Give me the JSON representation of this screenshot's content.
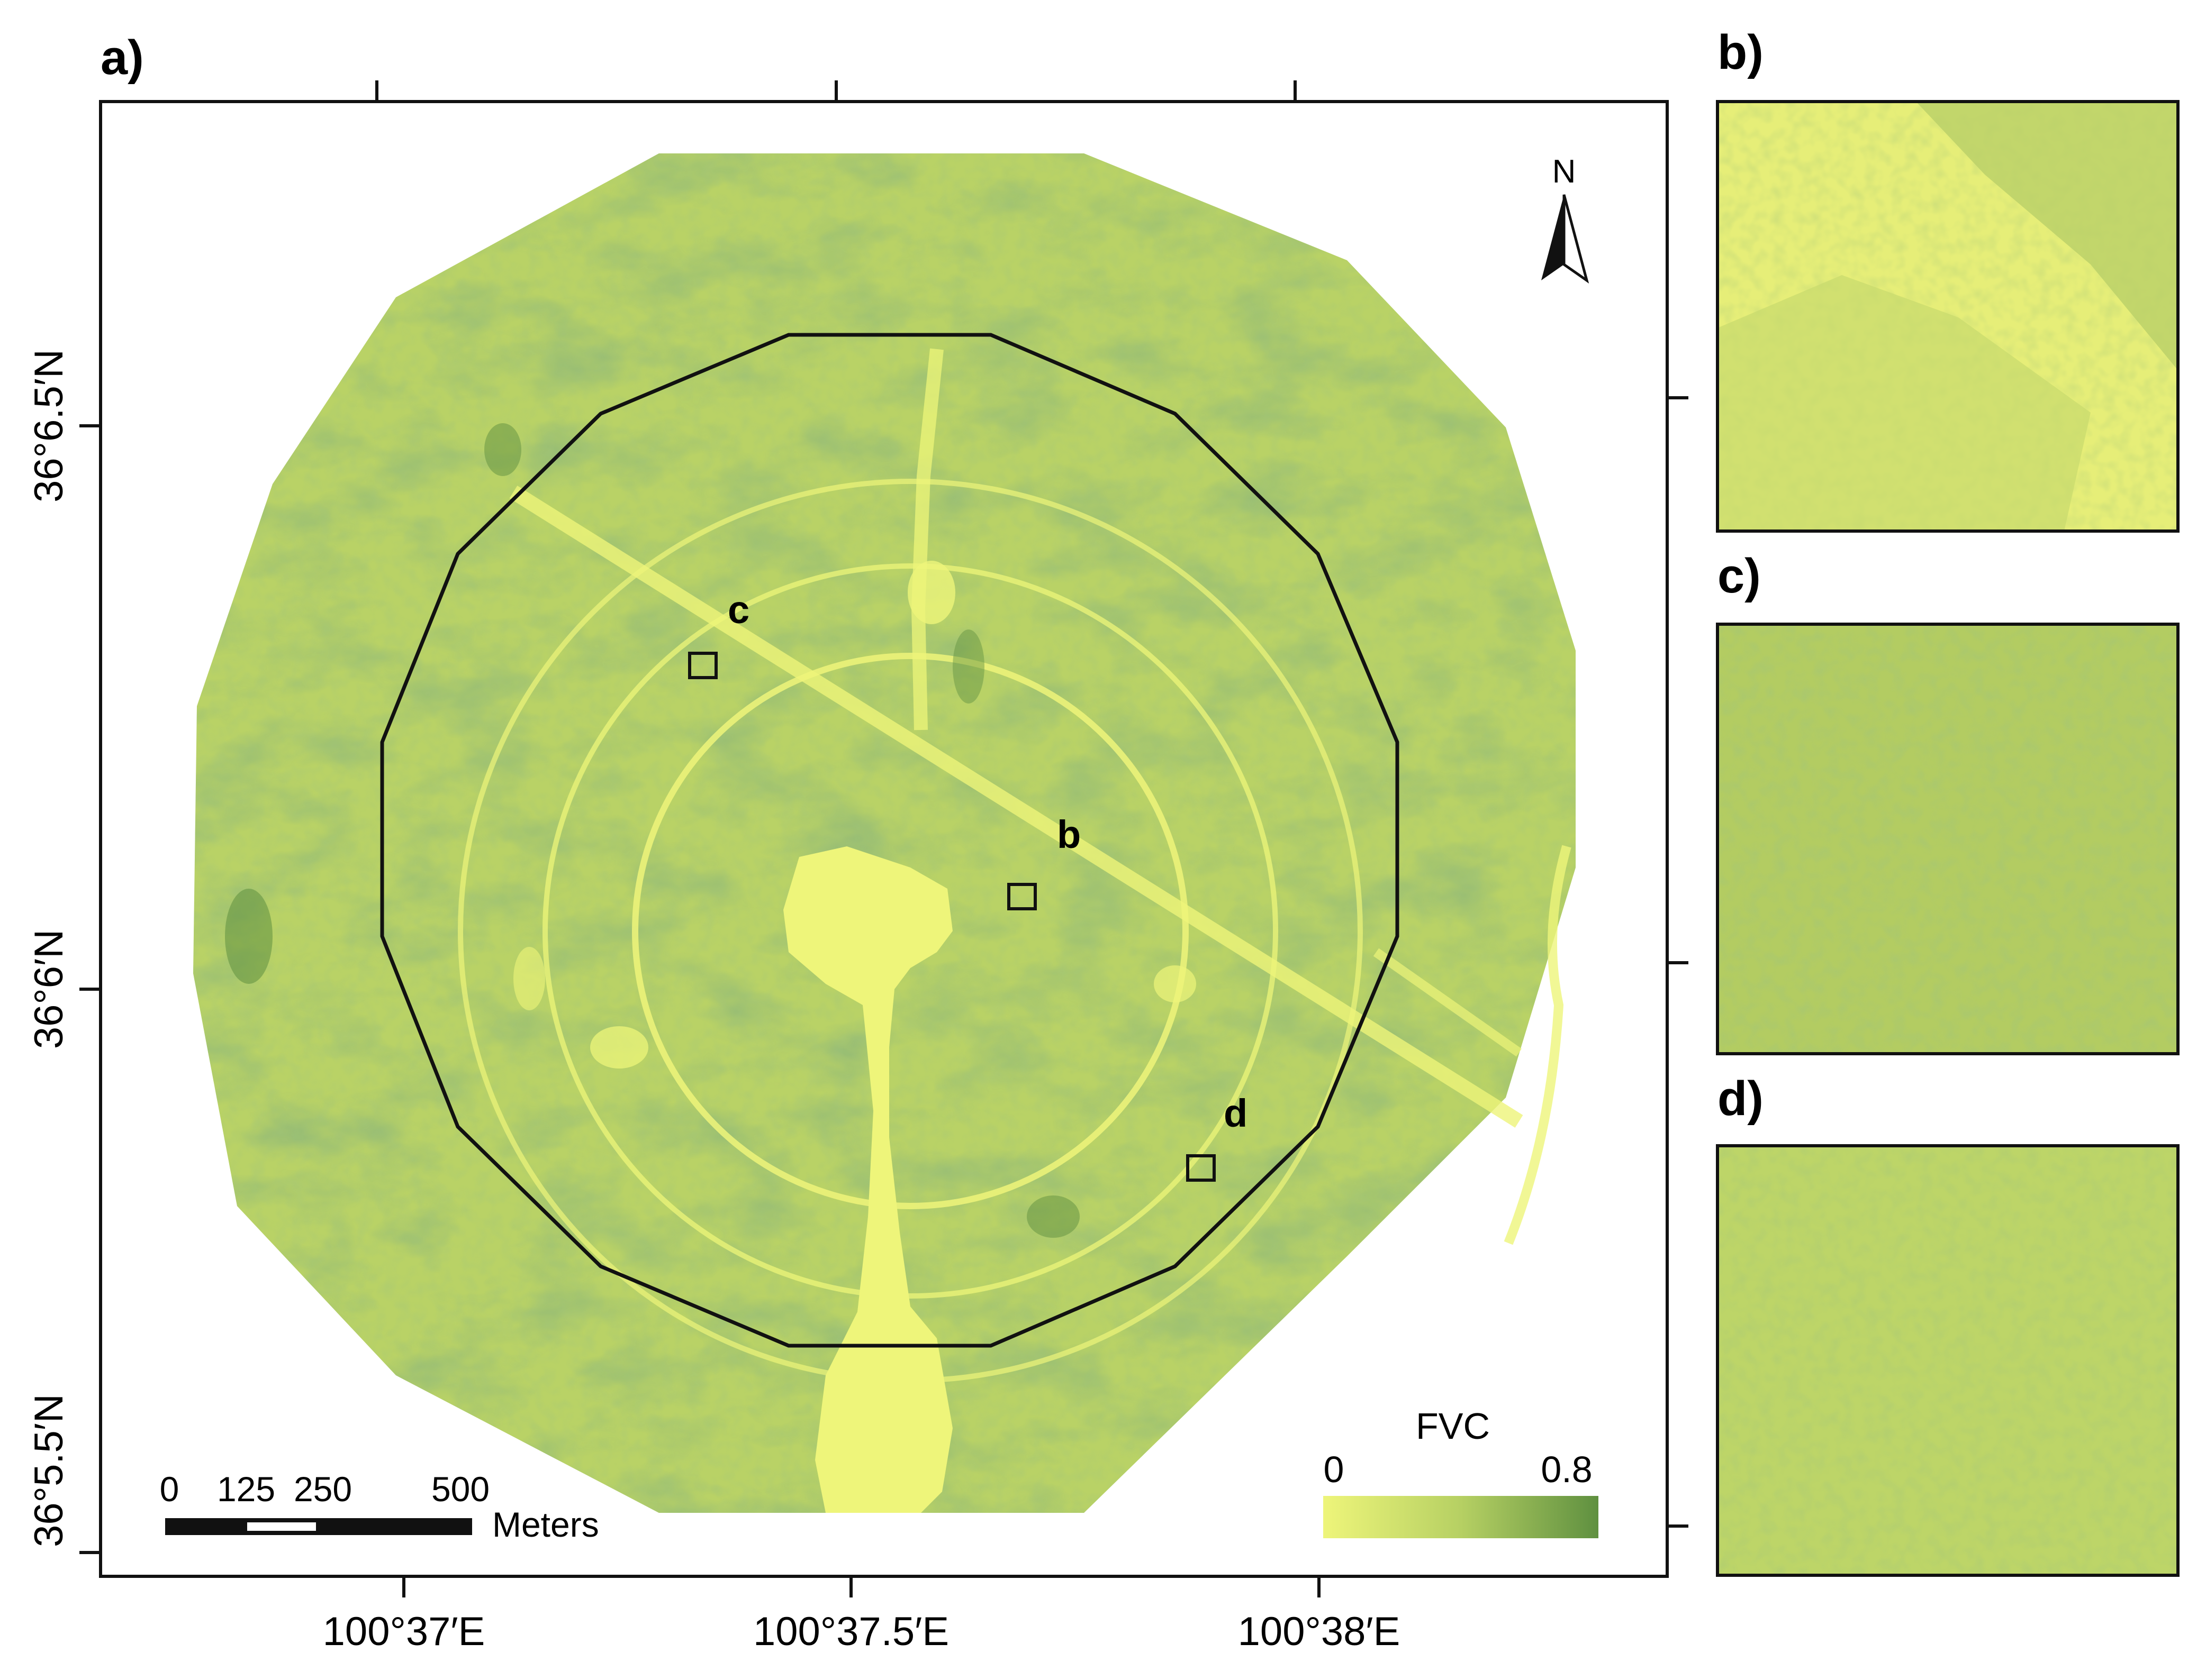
{
  "panels": {
    "a": {
      "label": "a)"
    },
    "b": {
      "label": "b)"
    },
    "c": {
      "label": "c)"
    },
    "d": {
      "label": "d)"
    }
  },
  "map": {
    "lat_ticks": [
      "36°6.5′N",
      "36°6′N",
      "36°5.5′N"
    ],
    "lon_ticks": [
      "100°37′E",
      "100°37.5′E",
      "100°38′E"
    ],
    "north_arrow": {
      "label": "N",
      "icon": "north-arrow-icon"
    },
    "inset_markers": [
      {
        "label": "c"
      },
      {
        "label": "b"
      },
      {
        "label": "d"
      }
    ],
    "scale_bar": {
      "ticks": [
        "0",
        "125",
        "250",
        "500"
      ],
      "unit": "Meters"
    },
    "legend": {
      "title": "FVC",
      "min_label": "0",
      "max_label": "0.8",
      "color_low": "#eef57a",
      "color_high": "#5f9040"
    }
  },
  "colors": {
    "fvc_low": "#eef57a",
    "fvc_mid": "#b4cf64",
    "fvc_high": "#6f9c47",
    "frame": "#111111"
  }
}
